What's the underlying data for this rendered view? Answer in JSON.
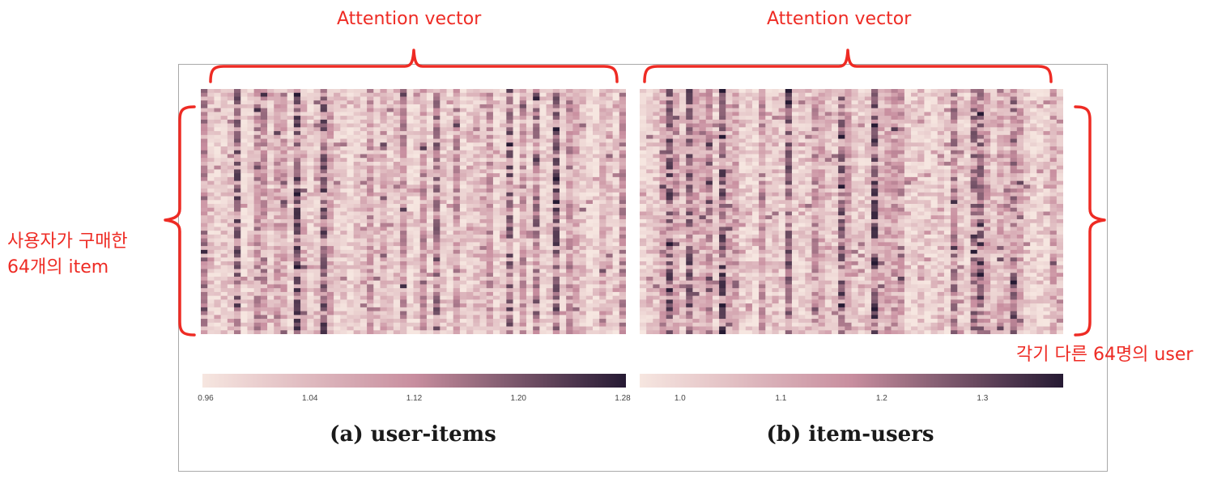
{
  "annotations": {
    "top_left": "Attention vector",
    "top_right": "Attention vector",
    "left_line1": "사용자가 구매한",
    "left_line2": "64개의 item",
    "right": "각기 다른 64명의 user"
  },
  "colors": {
    "annotation": "#ee2b24",
    "frame": "#a9a9a9",
    "cmap_low": "#f6e6e0",
    "cmap_mid": "#c88e9f",
    "cmap_high": "#261a33"
  },
  "chart_data": [
    {
      "type": "heatmap",
      "title": "(a) user-items",
      "rows": 64,
      "cols": 64,
      "vmin": 0.96,
      "vmax": 1.28,
      "colorbar_ticks": [
        "0.96",
        "1.04",
        "1.12",
        "1.20",
        "1.28"
      ],
      "colorbar_tick_values": [
        0.96,
        1.04,
        1.12,
        1.2,
        1.28
      ]
    },
    {
      "type": "heatmap",
      "title": "(b) item-users",
      "rows": 64,
      "cols": 64,
      "vmin": 0.96,
      "vmax": 1.38,
      "colorbar_ticks": [
        "1.0",
        "1.1",
        "1.2",
        "1.3"
      ],
      "colorbar_tick_values": [
        1.0,
        1.1,
        1.2,
        1.3
      ]
    }
  ]
}
